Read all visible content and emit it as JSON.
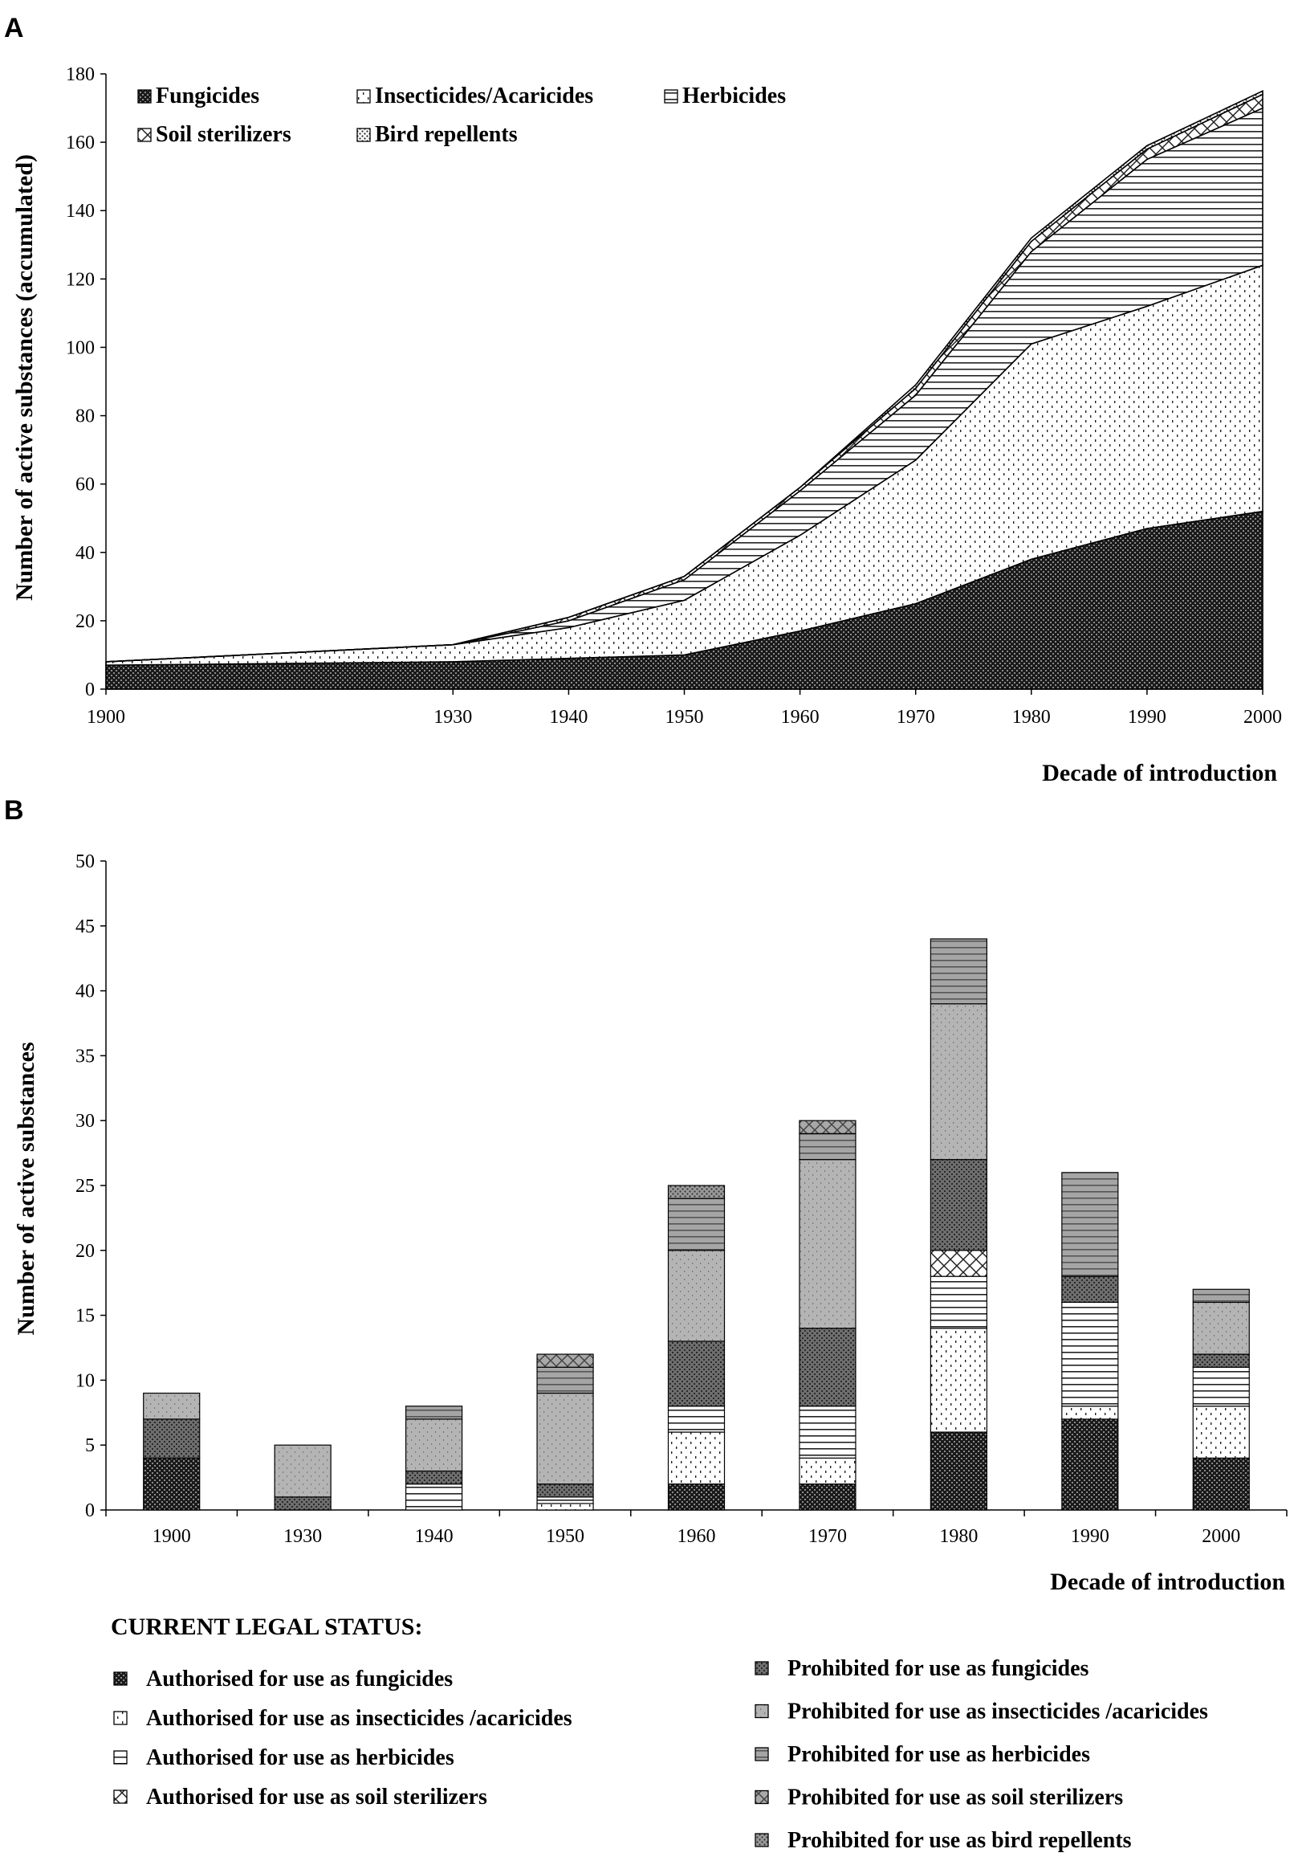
{
  "figure": {
    "panel_a_letter": "A",
    "panel_b_letter": "B",
    "legal_status_title": "CURRENT LEGAL STATUS:"
  },
  "chart_data": [
    {
      "type": "area",
      "stacked": true,
      "x": [
        1900,
        1930,
        1940,
        1950,
        1960,
        1970,
        1980,
        1990,
        2000
      ],
      "xlabel": "Decade of introduction",
      "ylabel": "Number of active substances (accumulated)",
      "ylim": [
        0,
        180
      ],
      "yticks": [
        0,
        20,
        40,
        60,
        80,
        100,
        120,
        140,
        160,
        180
      ],
      "legend_position": "top-left",
      "series": [
        {
          "name": "Fungicides",
          "pattern": "fungicide",
          "values": [
            7,
            8,
            9,
            10,
            17,
            25,
            38,
            47,
            52
          ]
        },
        {
          "name": "Insecticides/Acaricides",
          "pattern": "insecticide",
          "values": [
            1,
            5,
            9,
            16,
            28,
            42,
            63,
            65,
            72
          ]
        },
        {
          "name": "Herbicides",
          "pattern": "herbicide",
          "values": [
            0,
            0,
            2,
            6,
            13,
            19,
            27,
            43,
            46
          ]
        },
        {
          "name": "Soil sterilizers",
          "pattern": "soil",
          "values": [
            0,
            0,
            1,
            1,
            1,
            2,
            3,
            3,
            4
          ]
        },
        {
          "name": "Bird repellents",
          "pattern": "bird",
          "values": [
            0,
            0,
            0,
            0,
            0,
            1,
            1,
            1,
            1
          ]
        }
      ]
    },
    {
      "type": "bar",
      "stacked": true,
      "categories": [
        "1900",
        "1930",
        "1940",
        "1950",
        "1960",
        "1970",
        "1980",
        "1990",
        "2000"
      ],
      "xlabel": "Decade of introduction",
      "ylabel": "Number of active substances",
      "ylim": [
        0,
        50
      ],
      "yticks": [
        0,
        5,
        10,
        15,
        20,
        25,
        30,
        35,
        40,
        45,
        50
      ],
      "legend_position": "bottom",
      "series": [
        {
          "name": "Authorised for use as fungicides",
          "pattern": "fungicide",
          "values": [
            4,
            0,
            0,
            0,
            2,
            2,
            6,
            7,
            4
          ]
        },
        {
          "name": "Authorised for use as insecticides /acaricides",
          "pattern": "insecticide",
          "values": [
            0,
            0,
            0,
            0.5,
            4,
            2,
            8,
            1,
            4
          ]
        },
        {
          "name": "Authorised for use as herbicides",
          "pattern": "herbicide",
          "values": [
            0,
            0,
            2,
            0.5,
            2,
            4,
            4,
            8,
            3
          ]
        },
        {
          "name": "Authorised for use as soil sterilizers",
          "pattern": "soil",
          "values": [
            0,
            0,
            0,
            0,
            0,
            0,
            2,
            0,
            0
          ]
        },
        {
          "name": "Prohibited for use as fungicides",
          "pattern": "p-fungicide",
          "values": [
            3,
            1,
            1,
            1,
            5,
            6,
            7,
            2,
            1
          ]
        },
        {
          "name": "Prohibited for use as insecticides /acaricides",
          "pattern": "p-insecticide",
          "values": [
            2,
            4,
            4,
            7,
            7,
            13,
            12,
            0,
            4
          ]
        },
        {
          "name": "Prohibited for use as herbicides",
          "pattern": "p-herbicide",
          "values": [
            0,
            0,
            1,
            2,
            4,
            2,
            5,
            8,
            1
          ]
        },
        {
          "name": "Prohibited for use as soil sterilizers",
          "pattern": "p-soil",
          "values": [
            0,
            0,
            0,
            1,
            0,
            1,
            0,
            0,
            0
          ]
        },
        {
          "name": "Prohibited for use as bird repellents",
          "pattern": "p-bird",
          "values": [
            0,
            0,
            0,
            0,
            1,
            0,
            0,
            0,
            0
          ]
        }
      ]
    }
  ]
}
